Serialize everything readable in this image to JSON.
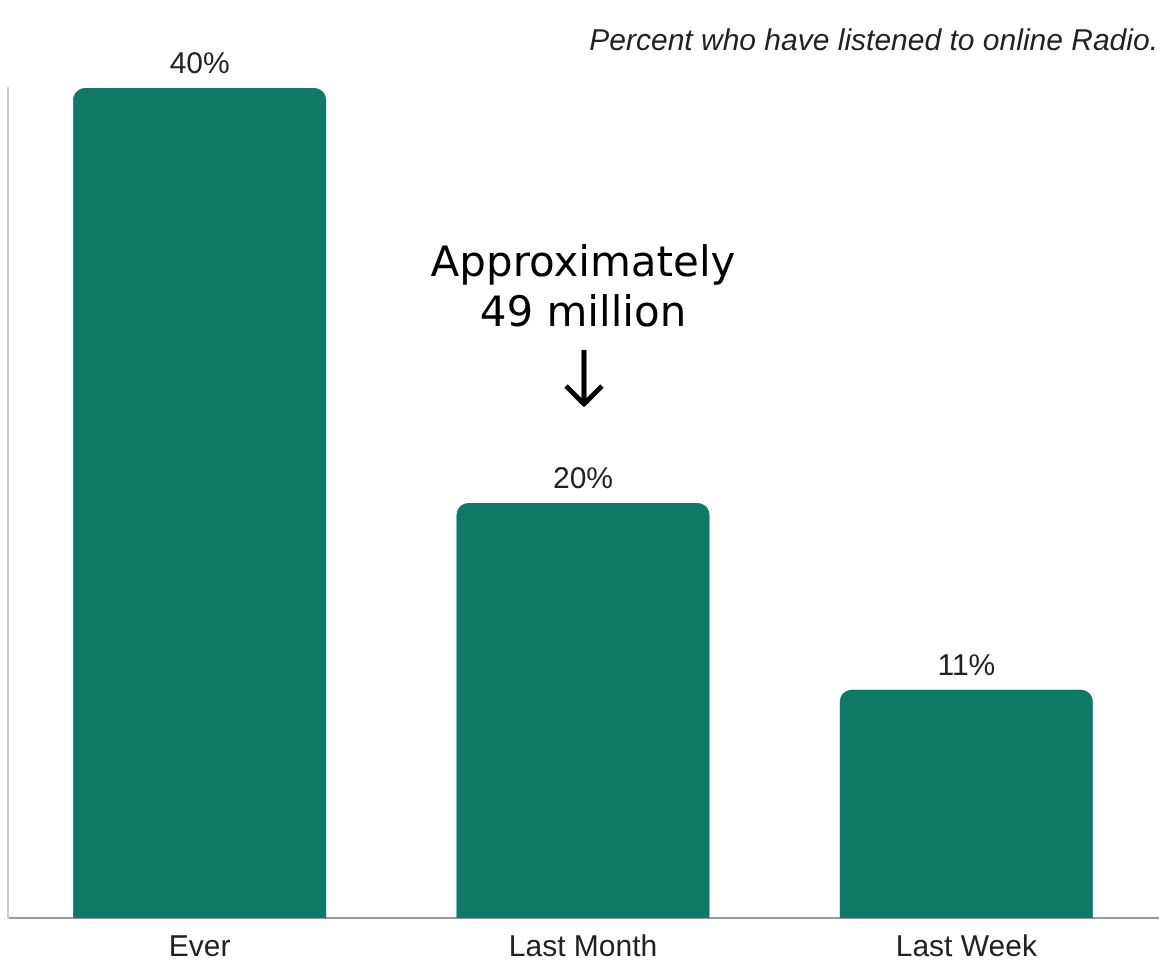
{
  "chart_data": {
    "type": "bar",
    "title": "Percent who have listened to online Radio.",
    "categories": [
      "Ever",
      "Last Month",
      "Last Week"
    ],
    "values": [
      40,
      20,
      11
    ],
    "value_labels": [
      "40%",
      "20%",
      "11%"
    ],
    "color": "#0e7a66",
    "grid": false,
    "legend": false,
    "annotations": [
      "Approximately\n49 million"
    ]
  }
}
